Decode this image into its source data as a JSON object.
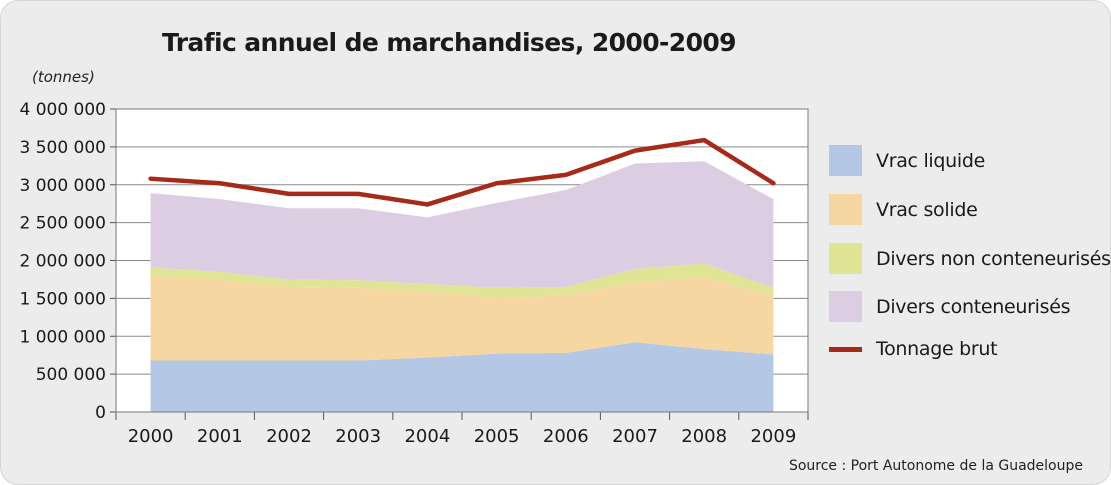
{
  "chart_data": {
    "type": "area",
    "title": "Trafic annuel de marchandises, 2000-2009",
    "ylabel": "(tonnes)",
    "xlabel": "",
    "source": "Source : Port Autonome de la Guadeloupe",
    "categories": [
      "2000",
      "2001",
      "2002",
      "2003",
      "2004",
      "2005",
      "2006",
      "2007",
      "2008",
      "2009"
    ],
    "ylim": [
      0,
      4000000
    ],
    "yticks": [
      0,
      500000,
      1000000,
      1500000,
      2000000,
      2500000,
      3000000,
      3500000,
      4000000
    ],
    "ytick_labels": [
      "0",
      "500 000",
      "1 000 000",
      "1 500 000",
      "2 000 000",
      "2 500 000",
      "3 000 000",
      "3 500 000",
      "4 000 000"
    ],
    "grid": true,
    "legend_position": "right",
    "stacked": true,
    "series": [
      {
        "name": "Vrac liquide",
        "kind": "area",
        "color": "#b4c7e5",
        "values": [
          680000,
          680000,
          680000,
          680000,
          720000,
          770000,
          780000,
          920000,
          830000,
          760000
        ]
      },
      {
        "name": "Vrac solide",
        "kind": "area",
        "color": "#f6d7a1",
        "values": [
          1120000,
          1070000,
          970000,
          960000,
          870000,
          740000,
          760000,
          790000,
          950000,
          770000
        ]
      },
      {
        "name": "Divers non conteneurisés",
        "kind": "area",
        "color": "#dfe594",
        "values": [
          110000,
          100000,
          100000,
          100000,
          100000,
          130000,
          110000,
          180000,
          180000,
          110000
        ]
      },
      {
        "name": "Divers conteneurisés",
        "kind": "area",
        "color": "#dccde3",
        "values": [
          980000,
          960000,
          940000,
          950000,
          880000,
          1120000,
          1280000,
          1390000,
          1350000,
          1170000
        ]
      },
      {
        "name": "Tonnage brut",
        "kind": "line",
        "color": "#a52a1a",
        "values": [
          3080000,
          3020000,
          2880000,
          2880000,
          2740000,
          3020000,
          3130000,
          3450000,
          3590000,
          3020000
        ]
      }
    ]
  }
}
